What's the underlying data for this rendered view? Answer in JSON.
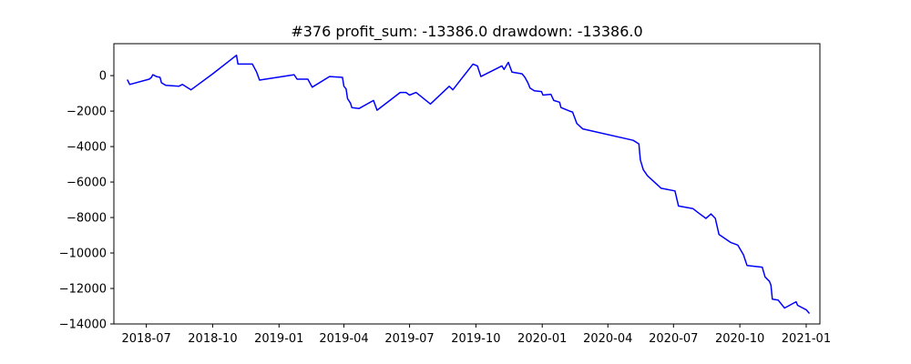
{
  "chart_data": {
    "type": "line",
    "title": "#376   profit_sum: -13386.0 drawdown: -13386.0",
    "xlabel": "",
    "ylabel": "",
    "grid": false,
    "legend": "none",
    "xlim": [
      "2018-05-17",
      "2021-01-20"
    ],
    "ylim": [
      -14000,
      1800
    ],
    "x_ticks": [
      {
        "date": "2018-07-01",
        "label": "2018-07"
      },
      {
        "date": "2018-10-01",
        "label": "2018-10"
      },
      {
        "date": "2019-01-01",
        "label": "2019-01"
      },
      {
        "date": "2019-04-01",
        "label": "2019-04"
      },
      {
        "date": "2019-07-01",
        "label": "2019-07"
      },
      {
        "date": "2019-10-01",
        "label": "2019-10"
      },
      {
        "date": "2020-01-01",
        "label": "2020-01"
      },
      {
        "date": "2020-04-01",
        "label": "2020-04"
      },
      {
        "date": "2020-07-01",
        "label": "2020-07"
      },
      {
        "date": "2020-10-01",
        "label": "2020-10"
      },
      {
        "date": "2021-01-01",
        "label": "2021-01"
      }
    ],
    "y_ticks": [
      {
        "value": 0,
        "label": "0"
      },
      {
        "value": -2000,
        "label": "−2000"
      },
      {
        "value": -4000,
        "label": "−4000"
      },
      {
        "value": -6000,
        "label": "−6000"
      },
      {
        "value": -8000,
        "label": "−8000"
      },
      {
        "value": -10000,
        "label": "−10000"
      },
      {
        "value": -12000,
        "label": "−12000"
      },
      {
        "value": -14000,
        "label": "−14000"
      }
    ],
    "series": [
      {
        "color": "#0000ff",
        "points": [
          [
            "2018-06-05",
            -250
          ],
          [
            "2018-06-08",
            -500
          ],
          [
            "2018-07-05",
            -200
          ],
          [
            "2018-07-08",
            -100
          ],
          [
            "2018-07-10",
            50
          ],
          [
            "2018-07-15",
            -50
          ],
          [
            "2018-07-20",
            -100
          ],
          [
            "2018-07-22",
            -400
          ],
          [
            "2018-07-28",
            -550
          ],
          [
            "2018-08-15",
            -600
          ],
          [
            "2018-08-20",
            -500
          ],
          [
            "2018-09-01",
            -800
          ],
          [
            "2018-10-01",
            100
          ],
          [
            "2018-11-03",
            1150
          ],
          [
            "2018-11-05",
            650
          ],
          [
            "2018-11-25",
            650
          ],
          [
            "2018-12-01",
            200
          ],
          [
            "2018-12-05",
            -250
          ],
          [
            "2019-01-22",
            50
          ],
          [
            "2019-01-26",
            -200
          ],
          [
            "2019-02-10",
            -200
          ],
          [
            "2019-02-16",
            -650
          ],
          [
            "2019-03-12",
            -50
          ],
          [
            "2019-03-30",
            -100
          ],
          [
            "2019-04-01",
            -600
          ],
          [
            "2019-04-04",
            -750
          ],
          [
            "2019-04-06",
            -1300
          ],
          [
            "2019-04-10",
            -1550
          ],
          [
            "2019-04-12",
            -1800
          ],
          [
            "2019-04-22",
            -1850
          ],
          [
            "2019-05-12",
            -1400
          ],
          [
            "2019-05-17",
            -1950
          ],
          [
            "2019-06-18",
            -950
          ],
          [
            "2019-06-26",
            -950
          ],
          [
            "2019-07-01",
            -1100
          ],
          [
            "2019-07-10",
            -950
          ],
          [
            "2019-07-30",
            -1600
          ],
          [
            "2019-08-25",
            -600
          ],
          [
            "2019-08-30",
            -800
          ],
          [
            "2019-09-27",
            650
          ],
          [
            "2019-10-03",
            550
          ],
          [
            "2019-10-08",
            -50
          ],
          [
            "2019-11-06",
            550
          ],
          [
            "2019-11-09",
            350
          ],
          [
            "2019-11-15",
            750
          ],
          [
            "2019-11-20",
            200
          ],
          [
            "2019-12-04",
            100
          ],
          [
            "2019-12-08",
            -100
          ],
          [
            "2019-12-12",
            -400
          ],
          [
            "2019-12-15",
            -700
          ],
          [
            "2019-12-21",
            -850
          ],
          [
            "2019-12-31",
            -900
          ],
          [
            "2020-01-02",
            -1100
          ],
          [
            "2020-01-13",
            -1050
          ],
          [
            "2020-01-17",
            -1400
          ],
          [
            "2020-01-25",
            -1500
          ],
          [
            "2020-01-27",
            -1800
          ],
          [
            "2020-02-08",
            -2000
          ],
          [
            "2020-02-12",
            -2050
          ],
          [
            "2020-02-18",
            -2700
          ],
          [
            "2020-02-26",
            -3000
          ],
          [
            "2020-05-06",
            -3650
          ],
          [
            "2020-05-14",
            -3850
          ],
          [
            "2020-05-16",
            -4750
          ],
          [
            "2020-05-20",
            -5300
          ],
          [
            "2020-05-26",
            -5650
          ],
          [
            "2020-06-14",
            -6350
          ],
          [
            "2020-07-03",
            -6500
          ],
          [
            "2020-07-08",
            -7350
          ],
          [
            "2020-07-28",
            -7500
          ],
          [
            "2020-08-05",
            -7750
          ],
          [
            "2020-08-15",
            -8050
          ],
          [
            "2020-08-22",
            -7800
          ],
          [
            "2020-08-28",
            -8050
          ],
          [
            "2020-09-02",
            -8950
          ],
          [
            "2020-09-18",
            -9400
          ],
          [
            "2020-09-28",
            -9550
          ],
          [
            "2020-10-06",
            -10100
          ],
          [
            "2020-10-11",
            -10700
          ],
          [
            "2020-11-01",
            -10800
          ],
          [
            "2020-11-05",
            -11350
          ],
          [
            "2020-11-11",
            -11600
          ],
          [
            "2020-11-13",
            -11800
          ],
          [
            "2020-11-15",
            -12600
          ],
          [
            "2020-11-23",
            -12650
          ],
          [
            "2020-12-02",
            -13100
          ],
          [
            "2020-12-18",
            -12750
          ],
          [
            "2020-12-20",
            -12950
          ],
          [
            "2021-01-01",
            -13200
          ],
          [
            "2021-01-05",
            -13386
          ]
        ]
      }
    ]
  }
}
